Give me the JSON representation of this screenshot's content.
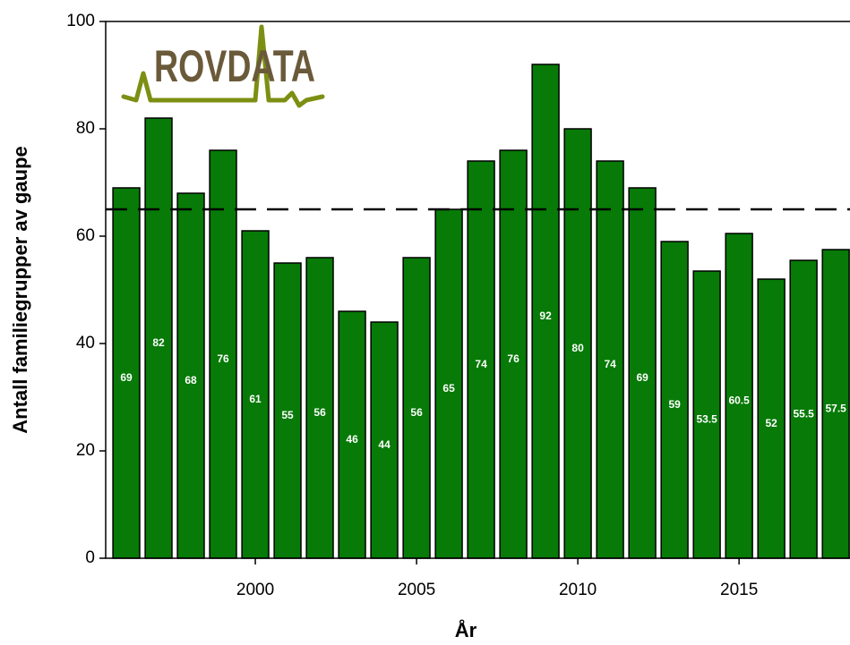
{
  "chart_data": {
    "type": "bar",
    "logo": "ROVDATA",
    "xlabel": "År",
    "ylabel": "Antall familiegrupper av gaupe",
    "x": [
      1996,
      1997,
      1998,
      1999,
      2000,
      2001,
      2002,
      2003,
      2004,
      2005,
      2006,
      2007,
      2008,
      2009,
      2010,
      2011,
      2012,
      2013,
      2014,
      2015,
      2016,
      2017,
      2018
    ],
    "values": [
      69,
      82,
      68,
      76,
      61,
      55,
      56,
      46,
      44,
      56,
      65,
      74,
      76,
      92,
      80,
      74,
      69,
      59,
      53.5,
      60.5,
      52,
      55.5,
      57.5
    ],
    "color": "#077a07",
    "reference_line": 65,
    "xlim": [
      1995.36,
      2018.44
    ],
    "xticks": [
      2000,
      2005,
      2010,
      2015
    ],
    "ylim": [
      0,
      100
    ],
    "yticks": [
      0,
      20,
      40,
      60,
      80,
      100
    ]
  }
}
